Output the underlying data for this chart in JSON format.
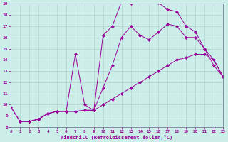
{
  "xlabel": "Windchill (Refroidissement éolien,°C)",
  "xlim": [
    0,
    23
  ],
  "ylim": [
    8,
    19
  ],
  "xticks": [
    0,
    1,
    2,
    3,
    4,
    5,
    6,
    7,
    8,
    9,
    10,
    11,
    12,
    13,
    14,
    15,
    16,
    17,
    18,
    19,
    20,
    21,
    22,
    23
  ],
  "yticks": [
    8,
    9,
    10,
    11,
    12,
    13,
    14,
    15,
    16,
    17,
    18,
    19
  ],
  "bg_color": "#cceee8",
  "line_color": "#990099",
  "grid_color": "#aacccc",
  "line1_x": [
    0,
    1,
    2,
    3,
    4,
    5,
    6,
    7,
    8,
    9,
    10,
    11,
    12,
    13,
    14,
    15,
    16,
    17,
    18,
    19,
    20,
    21,
    22,
    23
  ],
  "line1_y": [
    9.8,
    8.5,
    8.5,
    8.7,
    9.2,
    9.4,
    9.4,
    9.4,
    9.5,
    9.5,
    10.0,
    10.5,
    11.0,
    11.5,
    12.0,
    12.5,
    13.0,
    13.5,
    14.0,
    14.2,
    14.5,
    14.5,
    14.0,
    12.5
  ],
  "line2_x": [
    1,
    2,
    3,
    4,
    5,
    6,
    7,
    8,
    9,
    10,
    11,
    12,
    13,
    14,
    15,
    16,
    17,
    18,
    19,
    20,
    21,
    22,
    23
  ],
  "line2_y": [
    8.5,
    8.5,
    8.7,
    9.2,
    9.4,
    9.4,
    9.4,
    9.5,
    9.5,
    11.5,
    13.5,
    16.0,
    17.0,
    16.2,
    15.8,
    16.5,
    17.2,
    17.0,
    16.0,
    16.0,
    15.0,
    14.0,
    12.5
  ],
  "line3_x": [
    0,
    1,
    2,
    3,
    4,
    5,
    6,
    7,
    8,
    9,
    10,
    11,
    12,
    13,
    14,
    15,
    16,
    17,
    18,
    19,
    20,
    21,
    22,
    23
  ],
  "line3_y": [
    9.8,
    8.5,
    8.5,
    8.7,
    9.2,
    9.4,
    9.4,
    14.5,
    10.0,
    9.5,
    16.2,
    17.0,
    19.2,
    19.0,
    19.3,
    19.2,
    19.1,
    18.5,
    18.3,
    17.0,
    16.5,
    15.0,
    13.5,
    12.5
  ]
}
